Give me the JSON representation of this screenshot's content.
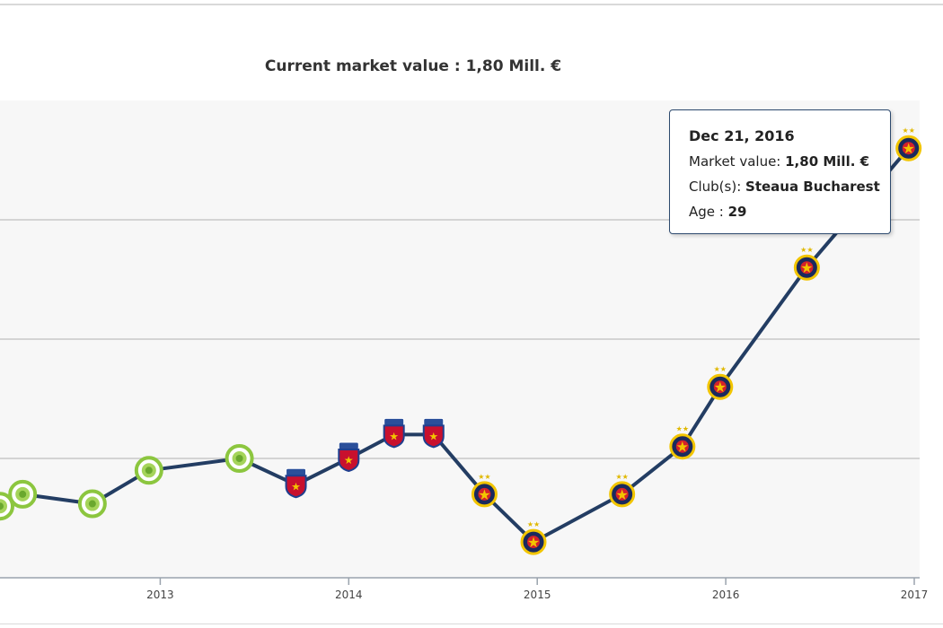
{
  "chart_data": {
    "type": "line",
    "title": "Current market value : 1,80 Mill. €",
    "xlabel": "",
    "ylabel": "",
    "x_ticks": [
      "2013",
      "2014",
      "2015",
      "2016",
      "2017"
    ],
    "xlim": [
      2012.15,
      2017.0
    ],
    "ylim": [
      0.0,
      2.0
    ],
    "y_gridlines": [
      0.5,
      1.0,
      1.5
    ],
    "series_color": "#233d63",
    "clubs": {
      "green": {
        "name": "green club crest",
        "color": "#8cc63f"
      },
      "steaua_old": {
        "name": "Steaua Bucharest crest (old)",
        "color": "#1f3f8f"
      },
      "steaua": {
        "name": "Steaua Bucharest crest",
        "color": "#f2c500"
      }
    },
    "points": [
      {
        "x": 2012.15,
        "y": 0.3,
        "club": "green"
      },
      {
        "x": 2012.27,
        "y": 0.35,
        "club": "green"
      },
      {
        "x": 2012.64,
        "y": 0.31,
        "club": "green"
      },
      {
        "x": 2012.94,
        "y": 0.45,
        "club": "green"
      },
      {
        "x": 2013.42,
        "y": 0.5,
        "club": "green"
      },
      {
        "x": 2013.72,
        "y": 0.39,
        "club": "steaua_old"
      },
      {
        "x": 2014.0,
        "y": 0.5,
        "club": "steaua_old"
      },
      {
        "x": 2014.24,
        "y": 0.6,
        "club": "steaua_old"
      },
      {
        "x": 2014.45,
        "y": 0.6,
        "club": "steaua_old"
      },
      {
        "x": 2014.72,
        "y": 0.35,
        "club": "steaua"
      },
      {
        "x": 2014.98,
        "y": 0.15,
        "club": "steaua"
      },
      {
        "x": 2015.45,
        "y": 0.35,
        "club": "steaua"
      },
      {
        "x": 2015.77,
        "y": 0.55,
        "club": "steaua"
      },
      {
        "x": 2015.97,
        "y": 0.8,
        "club": "steaua"
      },
      {
        "x": 2016.43,
        "y": 1.3,
        "club": "steaua"
      },
      {
        "x": 2016.97,
        "y": 1.8,
        "club": "steaua"
      }
    ]
  },
  "tooltip": {
    "date": "Dec 21, 2016",
    "market_value_label": "Market value: ",
    "market_value": "1,80 Mill. €",
    "club_label": "Club(s): ",
    "club": "Steaua Bucharest",
    "age_label": "Age : ",
    "age": "29"
  }
}
